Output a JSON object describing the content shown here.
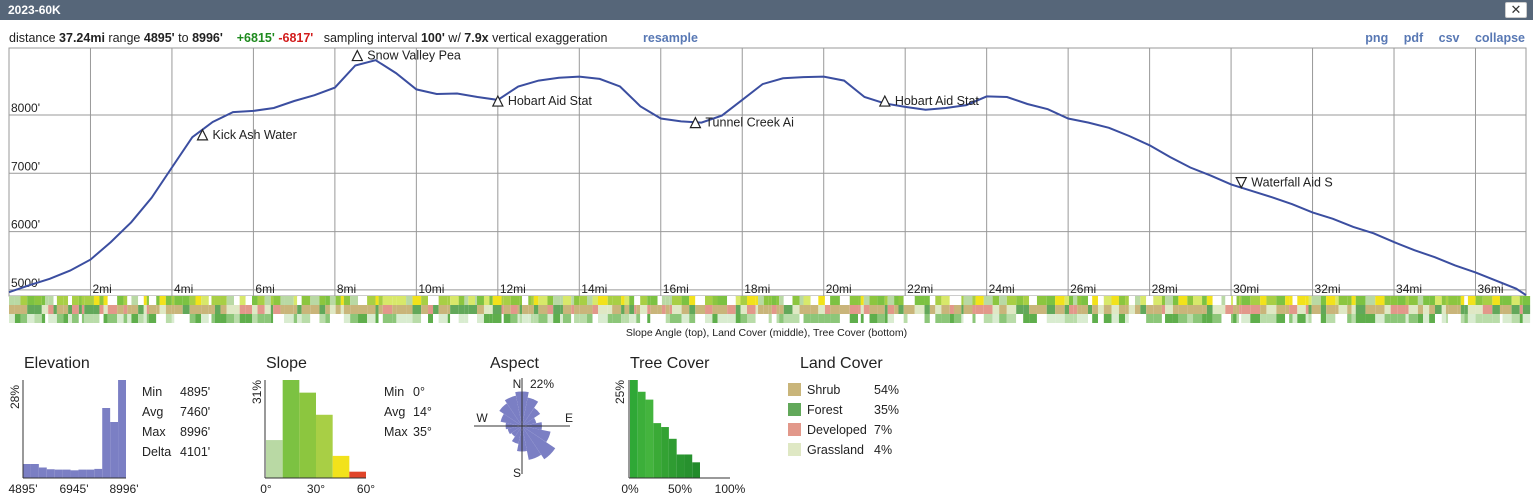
{
  "window": {
    "title": "2023-60K",
    "close_label": "✕"
  },
  "summary": {
    "distance_label": "distance",
    "distance": "37.24mi",
    "range_label": "range",
    "range_min": "4895'",
    "range_to": "to",
    "range_max": "8996'",
    "gain": "+6815'",
    "loss": "-6817'",
    "interval_label": "sampling interval",
    "interval": "100'",
    "w_label": "w/",
    "exaggeration": "7.9x",
    "exaggeration_label": "vertical exaggeration"
  },
  "links": {
    "resample": "resample",
    "png": "png",
    "pdf": "pdf",
    "csv": "csv",
    "collapse": "collapse"
  },
  "colors": {
    "profile_line": "#3b4ea0",
    "histogram_fill": "#7b7fc4",
    "gain": "#1e8a1e",
    "loss": "#d21c1c",
    "link": "#5878b4",
    "titlebar": "#566679",
    "shrub": "#c9b57a",
    "forest": "#62a85a",
    "developed": "#e2988a",
    "grassland": "#dfe8c4"
  },
  "chart_data": [
    {
      "type": "line",
      "name": "elevation-profile",
      "xlim": [
        0,
        37.24
      ],
      "ylim": [
        4895,
        9150
      ],
      "y_ticks": [
        {
          "v": 5000,
          "label": "5000'"
        },
        {
          "v": 6000,
          "label": "6000'"
        },
        {
          "v": 7000,
          "label": "7000'"
        },
        {
          "v": 8000,
          "label": "8000'"
        }
      ],
      "x_ticks": [
        {
          "v": 2,
          "label": "2mi"
        },
        {
          "v": 4,
          "label": "4mi"
        },
        {
          "v": 6,
          "label": "6mi"
        },
        {
          "v": 8,
          "label": "8mi"
        },
        {
          "v": 10,
          "label": "10mi"
        },
        {
          "v": 12,
          "label": "12mi"
        },
        {
          "v": 14,
          "label": "14mi"
        },
        {
          "v": 16,
          "label": "16mi"
        },
        {
          "v": 18,
          "label": "18mi"
        },
        {
          "v": 20,
          "label": "20mi"
        },
        {
          "v": 22,
          "label": "22mi"
        },
        {
          "v": 24,
          "label": "24mi"
        },
        {
          "v": 26,
          "label": "26mi"
        },
        {
          "v": 28,
          "label": "28mi"
        },
        {
          "v": 30,
          "label": "30mi"
        },
        {
          "v": 32,
          "label": "32mi"
        },
        {
          "v": 34,
          "label": "34mi"
        },
        {
          "v": 36,
          "label": "36mi"
        }
      ],
      "x": [
        0,
        0.5,
        1,
        1.5,
        2,
        2.5,
        3,
        3.5,
        4,
        4.5,
        5,
        5.5,
        6,
        6.5,
        7,
        7.5,
        8,
        8.5,
        9,
        9.5,
        10,
        10.5,
        11,
        11.5,
        12,
        12.5,
        13,
        13.5,
        14,
        14.5,
        15,
        15.5,
        16,
        16.5,
        17,
        17.5,
        18,
        18.5,
        19,
        19.5,
        20,
        20.5,
        21,
        21.5,
        22,
        22.5,
        23,
        23.5,
        24,
        24.5,
        25,
        25.5,
        26,
        26.5,
        27,
        27.5,
        28,
        28.5,
        29,
        29.5,
        30,
        30.5,
        31,
        31.5,
        32,
        32.5,
        33,
        33.5,
        34,
        34.5,
        35,
        35.5,
        36,
        36.5,
        37,
        37.24
      ],
      "y": [
        4960,
        5080,
        5190,
        5330,
        5520,
        5820,
        6160,
        6580,
        7100,
        7620,
        7880,
        8050,
        8070,
        8120,
        8240,
        8340,
        8470,
        8850,
        8940,
        8720,
        8440,
        8360,
        8370,
        8310,
        8260,
        8490,
        8590,
        8640,
        8660,
        8620,
        8490,
        8150,
        7940,
        7890,
        7870,
        7990,
        8260,
        8530,
        8630,
        8650,
        8660,
        8590,
        8310,
        8200,
        8140,
        8090,
        8120,
        8170,
        8320,
        8310,
        8190,
        8100,
        7940,
        7870,
        7780,
        7640,
        7480,
        7280,
        7100,
        6960,
        6810,
        6700,
        6590,
        6470,
        6330,
        6220,
        6080,
        5970,
        5820,
        5680,
        5560,
        5420,
        5300,
        5160,
        5020,
        4910
      ],
      "waypoints": [
        {
          "x": 4.75,
          "y": 7660,
          "label": "Kick Ash Water",
          "marker": "up"
        },
        {
          "x": 8.55,
          "y": 9020,
          "label": "Snow Valley Pea",
          "marker": "up"
        },
        {
          "x": 12.0,
          "y": 8240,
          "label": "Hobart Aid Stat",
          "marker": "up"
        },
        {
          "x": 16.85,
          "y": 7870,
          "label": "Tunnel Creek Ai",
          "marker": "up"
        },
        {
          "x": 21.5,
          "y": 8240,
          "label": "Hobart Aid Stat",
          "marker": "up"
        },
        {
          "x": 30.25,
          "y": 6840,
          "label": "Waterfall Aid S",
          "marker": "down"
        }
      ]
    },
    {
      "type": "bar",
      "name": "elevation-histogram",
      "title": "Elevation",
      "ylabel": "28%",
      "xlabels": [
        "4895'",
        "6945'",
        "8996'"
      ],
      "values": [
        4,
        4,
        3,
        2.5,
        2.4,
        2.4,
        2.2,
        2.4,
        2.4,
        2.6,
        20,
        16,
        28
      ],
      "ymax": 28,
      "stats": [
        {
          "label": "Min",
          "value": "4895'"
        },
        {
          "label": "Avg",
          "value": "7460'"
        },
        {
          "label": "Max",
          "value": "8996'"
        },
        {
          "label": "Delta",
          "value": "4101'"
        }
      ]
    },
    {
      "type": "bar",
      "name": "slope-histogram",
      "title": "Slope",
      "ylabel": "31%",
      "xlabels": [
        "0°",
        "30°",
        "60°"
      ],
      "values": [
        12,
        31,
        27,
        20,
        7,
        2
      ],
      "bar_colors": [
        "#b9d9a4",
        "#7cc242",
        "#8cc63f",
        "#a8cf45",
        "#f2e21b",
        "#e0452a"
      ],
      "ymax": 31,
      "stats": [
        {
          "label": "Min",
          "value": "0°"
        },
        {
          "label": "Avg",
          "value": "14°"
        },
        {
          "label": "Max",
          "value": "35°"
        }
      ]
    },
    {
      "type": "pie",
      "name": "aspect-rose",
      "title": "Aspect",
      "max_label": "22%",
      "directions": [
        "N",
        "E",
        "S",
        "W"
      ],
      "values": [
        19,
        16,
        12,
        8,
        11,
        16,
        22,
        19,
        14,
        10,
        7,
        8,
        9,
        12,
        15,
        17
      ]
    },
    {
      "type": "bar",
      "name": "tree-cover-histogram",
      "title": "Tree Cover",
      "ylabel": "25%",
      "xlabels": [
        "0%",
        "50%",
        "100%"
      ],
      "values": [
        25,
        22,
        20,
        14,
        13,
        10,
        6,
        6,
        4
      ],
      "ymax": 25
    },
    {
      "type": "table",
      "name": "land-cover",
      "title": "Land Cover",
      "rows": [
        {
          "label": "Shrub",
          "value": "54%",
          "color": "#c9b57a"
        },
        {
          "label": "Forest",
          "value": "35%",
          "color": "#62a85a"
        },
        {
          "label": "Developed",
          "value": "7%",
          "color": "#e2988a"
        },
        {
          "label": "Grassland",
          "value": "4%",
          "color": "#dfe8c4"
        }
      ]
    }
  ],
  "bands": {
    "caption": "Slope Angle (top), Land Cover (middle), Tree Cover (bottom)"
  }
}
